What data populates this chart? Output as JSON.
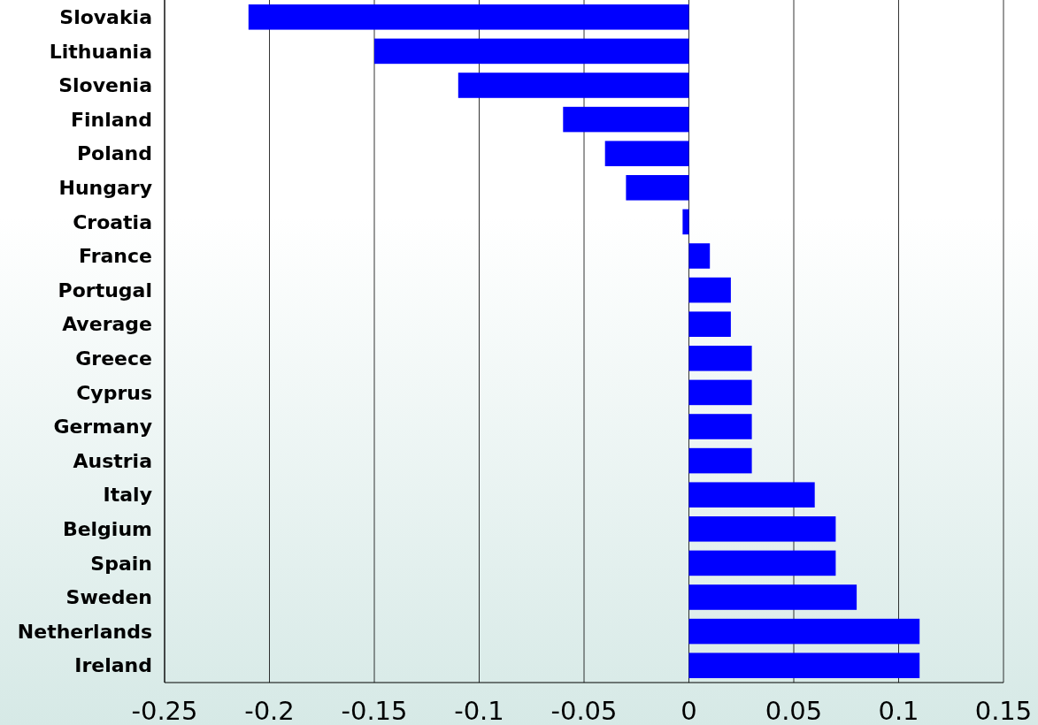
{
  "chart_data": {
    "type": "bar",
    "orientation": "horizontal",
    "categories": [
      "Slovakia",
      "Lithuania",
      "Slovenia",
      "Finland",
      "Poland",
      "Hungary",
      "Croatia",
      "France",
      "Portugal",
      "Average",
      "Greece",
      "Cyprus",
      "Germany",
      "Austria",
      "Italy",
      "Belgium",
      "Spain",
      "Sweden",
      "Netherlands",
      "Ireland"
    ],
    "values": [
      -0.21,
      -0.15,
      -0.11,
      -0.06,
      -0.04,
      -0.03,
      -0.003,
      0.01,
      0.02,
      0.02,
      0.03,
      0.03,
      0.03,
      0.03,
      0.06,
      0.07,
      0.07,
      0.08,
      0.11,
      0.11
    ],
    "color": "#0000ff",
    "xlim": [
      -0.25,
      0.15
    ],
    "xticks": [
      -0.25,
      -0.2,
      -0.15,
      -0.1,
      -0.05,
      0,
      0.05,
      0.1,
      0.15
    ],
    "grid": "x"
  }
}
